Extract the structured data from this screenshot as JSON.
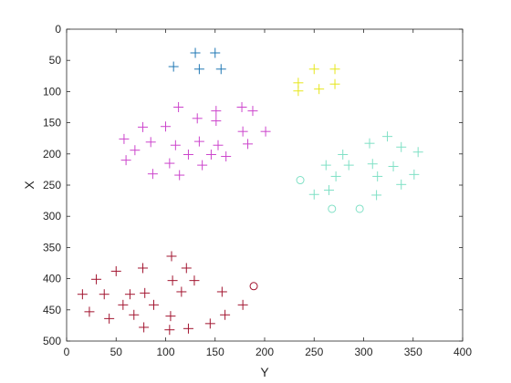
{
  "chart_data": {
    "type": "scatter",
    "title": "",
    "xlabel": "Y",
    "ylabel": "X",
    "xlim": [
      0,
      400
    ],
    "ylim": [
      0,
      500
    ],
    "y_reversed": true,
    "x_axis_location": "bottom",
    "grid": false,
    "legend": null,
    "xticks": [
      0,
      50,
      100,
      150,
      200,
      250,
      300,
      350,
      400
    ],
    "yticks": [
      0,
      50,
      100,
      150,
      200,
      250,
      300,
      350,
      400,
      450,
      500
    ],
    "series": [
      {
        "color": "#1f77b4",
        "marker": "plus",
        "points": [
          [
            130,
            38
          ],
          [
            150,
            38
          ],
          [
            108,
            60
          ],
          [
            134,
            64
          ],
          [
            156,
            64
          ]
        ]
      },
      {
        "color": "#e6e61a",
        "marker": "plus",
        "points": [
          [
            250,
            64
          ],
          [
            271,
            64
          ],
          [
            234,
            86
          ],
          [
            271,
            88
          ],
          [
            255,
            96
          ],
          [
            234,
            99
          ]
        ]
      },
      {
        "color": "#cc44cc",
        "marker": "plus",
        "points": [
          [
            113,
            125
          ],
          [
            177,
            125
          ],
          [
            132,
            143
          ],
          [
            151,
            131
          ],
          [
            188,
            131
          ],
          [
            77,
            157
          ],
          [
            100,
            156
          ],
          [
            151,
            147
          ],
          [
            178,
            164
          ],
          [
            201,
            164
          ],
          [
            58,
            176
          ],
          [
            85,
            181
          ],
          [
            110,
            186
          ],
          [
            134,
            180
          ],
          [
            153,
            186
          ],
          [
            183,
            184
          ],
          [
            69,
            194
          ],
          [
            123,
            201
          ],
          [
            146,
            201
          ],
          [
            161,
            204
          ],
          [
            60,
            210
          ],
          [
            104,
            215
          ],
          [
            137,
            218
          ],
          [
            114,
            234
          ],
          [
            87,
            232
          ]
        ]
      },
      {
        "color": "#7fe0c5",
        "marker": "plus",
        "points": [
          [
            324,
            172
          ],
          [
            306,
            183
          ],
          [
            338,
            189
          ],
          [
            355,
            197
          ],
          [
            279,
            201
          ],
          [
            262,
            218
          ],
          [
            285,
            218
          ],
          [
            309,
            216
          ],
          [
            330,
            220
          ],
          [
            272,
            236
          ],
          [
            314,
            236
          ],
          [
            351,
            233
          ],
          [
            338,
            249
          ],
          [
            265,
            258
          ],
          [
            313,
            266
          ],
          [
            250,
            265
          ]
        ]
      },
      {
        "color": "#7fe0c5",
        "marker": "circle",
        "points": [
          [
            236,
            242
          ],
          [
            268,
            288
          ],
          [
            296,
            288
          ]
        ]
      },
      {
        "color": "#a2142f",
        "marker": "plus",
        "points": [
          [
            106,
            364
          ],
          [
            121,
            383
          ],
          [
            77,
            383
          ],
          [
            50,
            388
          ],
          [
            30,
            401
          ],
          [
            107,
            403
          ],
          [
            129,
            403
          ],
          [
            16,
            425
          ],
          [
            38,
            425
          ],
          [
            64,
            425
          ],
          [
            79,
            423
          ],
          [
            116,
            421
          ],
          [
            157,
            421
          ],
          [
            57,
            442
          ],
          [
            88,
            442
          ],
          [
            23,
            453
          ],
          [
            68,
            458
          ],
          [
            105,
            460
          ],
          [
            160,
            458
          ],
          [
            178,
            442
          ],
          [
            43,
            464
          ],
          [
            78,
            478
          ],
          [
            104,
            482
          ],
          [
            123,
            480
          ],
          [
            145,
            472
          ]
        ]
      },
      {
        "color": "#a2142f",
        "marker": "circle",
        "points": [
          [
            189,
            412
          ]
        ]
      }
    ]
  }
}
